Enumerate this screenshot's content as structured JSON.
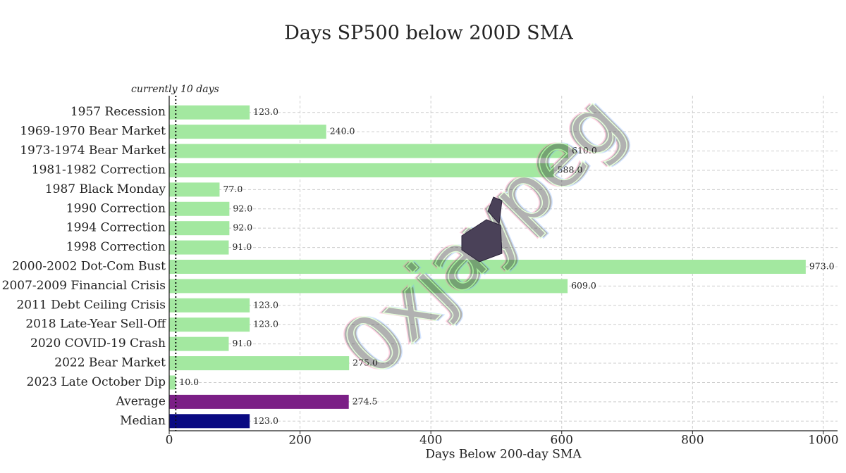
{
  "chart_data": {
    "type": "barh",
    "title": "Days SP500 below 200D SMA",
    "xlabel": "Days Below 200-day SMA",
    "annotation": "currently 10 days",
    "reference_line": 10,
    "watermark": "0xjaypeg",
    "categories": [
      "1957 Recession",
      "1969-1970 Bear Market",
      "1973-1974 Bear Market",
      "1981-1982 Correction",
      "1987 Black Monday",
      "1990 Correction",
      "1994 Correction",
      "1998 Correction",
      "2000-2002 Dot-Com Bust",
      "2007-2009 Financial Crisis",
      "2011 Debt Ceiling Crisis",
      "2018 Late-Year Sell-Off",
      "2020 COVID-19 Crash",
      "2022 Bear Market",
      "2023 Late October Dip",
      "Average",
      "Median"
    ],
    "values": [
      123,
      240,
      610,
      588,
      77,
      92,
      92,
      91,
      973,
      609,
      123,
      123,
      91,
      275,
      10,
      274.5,
      123
    ],
    "value_labels": [
      "123.0",
      "240.0",
      "610.0",
      "588.0",
      "77.0",
      "92.0",
      "92.0",
      "91.0",
      "973.0",
      "609.0",
      "123.0",
      "123.0",
      "91.0",
      "275.0",
      "10.0",
      "274.5",
      "123.0"
    ],
    "colors": [
      "#a3e8a0",
      "#a3e8a0",
      "#a3e8a0",
      "#a3e8a0",
      "#a3e8a0",
      "#a3e8a0",
      "#a3e8a0",
      "#a3e8a0",
      "#a3e8a0",
      "#a3e8a0",
      "#a3e8a0",
      "#a3e8a0",
      "#a3e8a0",
      "#a3e8a0",
      "#a3e8a0",
      "#7b1f86",
      "#0a0a82"
    ],
    "xlim": [
      0,
      1021.65
    ],
    "xticks": [
      0,
      200,
      400,
      600,
      800,
      1000
    ],
    "grid": true
  }
}
